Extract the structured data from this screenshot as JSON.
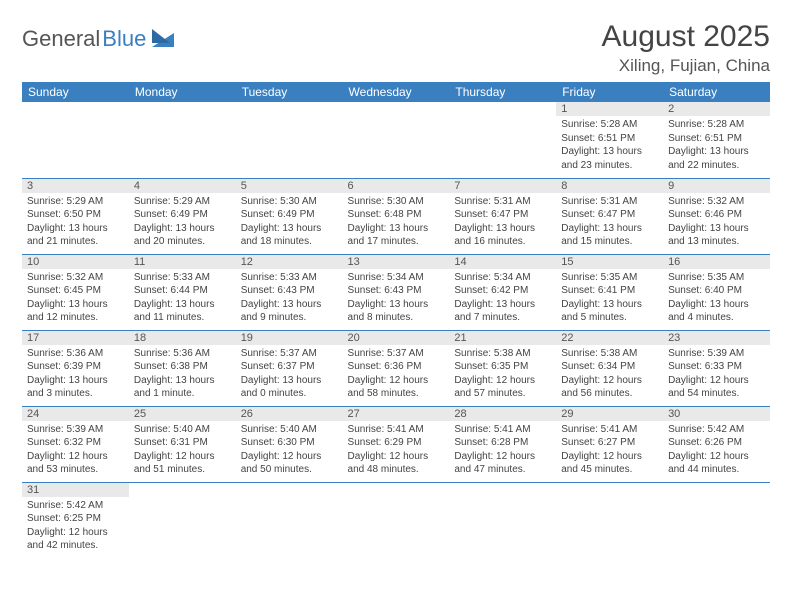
{
  "logo": {
    "part1": "General",
    "part2": "Blue"
  },
  "title": "August 2025",
  "location": "Xiling, Fujian, China",
  "colors": {
    "header_bg": "#3a7fbf",
    "header_text": "#ffffff",
    "daynum_bg": "#e9e9e9",
    "border": "#3a7fbf",
    "text": "#444444"
  },
  "day_headers": [
    "Sunday",
    "Monday",
    "Tuesday",
    "Wednesday",
    "Thursday",
    "Friday",
    "Saturday"
  ],
  "weeks": [
    [
      {
        "n": "",
        "sr": "",
        "ss": "",
        "dl": ""
      },
      {
        "n": "",
        "sr": "",
        "ss": "",
        "dl": ""
      },
      {
        "n": "",
        "sr": "",
        "ss": "",
        "dl": ""
      },
      {
        "n": "",
        "sr": "",
        "ss": "",
        "dl": ""
      },
      {
        "n": "",
        "sr": "",
        "ss": "",
        "dl": ""
      },
      {
        "n": "1",
        "sr": "Sunrise: 5:28 AM",
        "ss": "Sunset: 6:51 PM",
        "dl": "Daylight: 13 hours and 23 minutes."
      },
      {
        "n": "2",
        "sr": "Sunrise: 5:28 AM",
        "ss": "Sunset: 6:51 PM",
        "dl": "Daylight: 13 hours and 22 minutes."
      }
    ],
    [
      {
        "n": "3",
        "sr": "Sunrise: 5:29 AM",
        "ss": "Sunset: 6:50 PM",
        "dl": "Daylight: 13 hours and 21 minutes."
      },
      {
        "n": "4",
        "sr": "Sunrise: 5:29 AM",
        "ss": "Sunset: 6:49 PM",
        "dl": "Daylight: 13 hours and 20 minutes."
      },
      {
        "n": "5",
        "sr": "Sunrise: 5:30 AM",
        "ss": "Sunset: 6:49 PM",
        "dl": "Daylight: 13 hours and 18 minutes."
      },
      {
        "n": "6",
        "sr": "Sunrise: 5:30 AM",
        "ss": "Sunset: 6:48 PM",
        "dl": "Daylight: 13 hours and 17 minutes."
      },
      {
        "n": "7",
        "sr": "Sunrise: 5:31 AM",
        "ss": "Sunset: 6:47 PM",
        "dl": "Daylight: 13 hours and 16 minutes."
      },
      {
        "n": "8",
        "sr": "Sunrise: 5:31 AM",
        "ss": "Sunset: 6:47 PM",
        "dl": "Daylight: 13 hours and 15 minutes."
      },
      {
        "n": "9",
        "sr": "Sunrise: 5:32 AM",
        "ss": "Sunset: 6:46 PM",
        "dl": "Daylight: 13 hours and 13 minutes."
      }
    ],
    [
      {
        "n": "10",
        "sr": "Sunrise: 5:32 AM",
        "ss": "Sunset: 6:45 PM",
        "dl": "Daylight: 13 hours and 12 minutes."
      },
      {
        "n": "11",
        "sr": "Sunrise: 5:33 AM",
        "ss": "Sunset: 6:44 PM",
        "dl": "Daylight: 13 hours and 11 minutes."
      },
      {
        "n": "12",
        "sr": "Sunrise: 5:33 AM",
        "ss": "Sunset: 6:43 PM",
        "dl": "Daylight: 13 hours and 9 minutes."
      },
      {
        "n": "13",
        "sr": "Sunrise: 5:34 AM",
        "ss": "Sunset: 6:43 PM",
        "dl": "Daylight: 13 hours and 8 minutes."
      },
      {
        "n": "14",
        "sr": "Sunrise: 5:34 AM",
        "ss": "Sunset: 6:42 PM",
        "dl": "Daylight: 13 hours and 7 minutes."
      },
      {
        "n": "15",
        "sr": "Sunrise: 5:35 AM",
        "ss": "Sunset: 6:41 PM",
        "dl": "Daylight: 13 hours and 5 minutes."
      },
      {
        "n": "16",
        "sr": "Sunrise: 5:35 AM",
        "ss": "Sunset: 6:40 PM",
        "dl": "Daylight: 13 hours and 4 minutes."
      }
    ],
    [
      {
        "n": "17",
        "sr": "Sunrise: 5:36 AM",
        "ss": "Sunset: 6:39 PM",
        "dl": "Daylight: 13 hours and 3 minutes."
      },
      {
        "n": "18",
        "sr": "Sunrise: 5:36 AM",
        "ss": "Sunset: 6:38 PM",
        "dl": "Daylight: 13 hours and 1 minute."
      },
      {
        "n": "19",
        "sr": "Sunrise: 5:37 AM",
        "ss": "Sunset: 6:37 PM",
        "dl": "Daylight: 13 hours and 0 minutes."
      },
      {
        "n": "20",
        "sr": "Sunrise: 5:37 AM",
        "ss": "Sunset: 6:36 PM",
        "dl": "Daylight: 12 hours and 58 minutes."
      },
      {
        "n": "21",
        "sr": "Sunrise: 5:38 AM",
        "ss": "Sunset: 6:35 PM",
        "dl": "Daylight: 12 hours and 57 minutes."
      },
      {
        "n": "22",
        "sr": "Sunrise: 5:38 AM",
        "ss": "Sunset: 6:34 PM",
        "dl": "Daylight: 12 hours and 56 minutes."
      },
      {
        "n": "23",
        "sr": "Sunrise: 5:39 AM",
        "ss": "Sunset: 6:33 PM",
        "dl": "Daylight: 12 hours and 54 minutes."
      }
    ],
    [
      {
        "n": "24",
        "sr": "Sunrise: 5:39 AM",
        "ss": "Sunset: 6:32 PM",
        "dl": "Daylight: 12 hours and 53 minutes."
      },
      {
        "n": "25",
        "sr": "Sunrise: 5:40 AM",
        "ss": "Sunset: 6:31 PM",
        "dl": "Daylight: 12 hours and 51 minutes."
      },
      {
        "n": "26",
        "sr": "Sunrise: 5:40 AM",
        "ss": "Sunset: 6:30 PM",
        "dl": "Daylight: 12 hours and 50 minutes."
      },
      {
        "n": "27",
        "sr": "Sunrise: 5:41 AM",
        "ss": "Sunset: 6:29 PM",
        "dl": "Daylight: 12 hours and 48 minutes."
      },
      {
        "n": "28",
        "sr": "Sunrise: 5:41 AM",
        "ss": "Sunset: 6:28 PM",
        "dl": "Daylight: 12 hours and 47 minutes."
      },
      {
        "n": "29",
        "sr": "Sunrise: 5:41 AM",
        "ss": "Sunset: 6:27 PM",
        "dl": "Daylight: 12 hours and 45 minutes."
      },
      {
        "n": "30",
        "sr": "Sunrise: 5:42 AM",
        "ss": "Sunset: 6:26 PM",
        "dl": "Daylight: 12 hours and 44 minutes."
      }
    ],
    [
      {
        "n": "31",
        "sr": "Sunrise: 5:42 AM",
        "ss": "Sunset: 6:25 PM",
        "dl": "Daylight: 12 hours and 42 minutes."
      },
      {
        "n": "",
        "sr": "",
        "ss": "",
        "dl": ""
      },
      {
        "n": "",
        "sr": "",
        "ss": "",
        "dl": ""
      },
      {
        "n": "",
        "sr": "",
        "ss": "",
        "dl": ""
      },
      {
        "n": "",
        "sr": "",
        "ss": "",
        "dl": ""
      },
      {
        "n": "",
        "sr": "",
        "ss": "",
        "dl": ""
      },
      {
        "n": "",
        "sr": "",
        "ss": "",
        "dl": ""
      }
    ]
  ]
}
